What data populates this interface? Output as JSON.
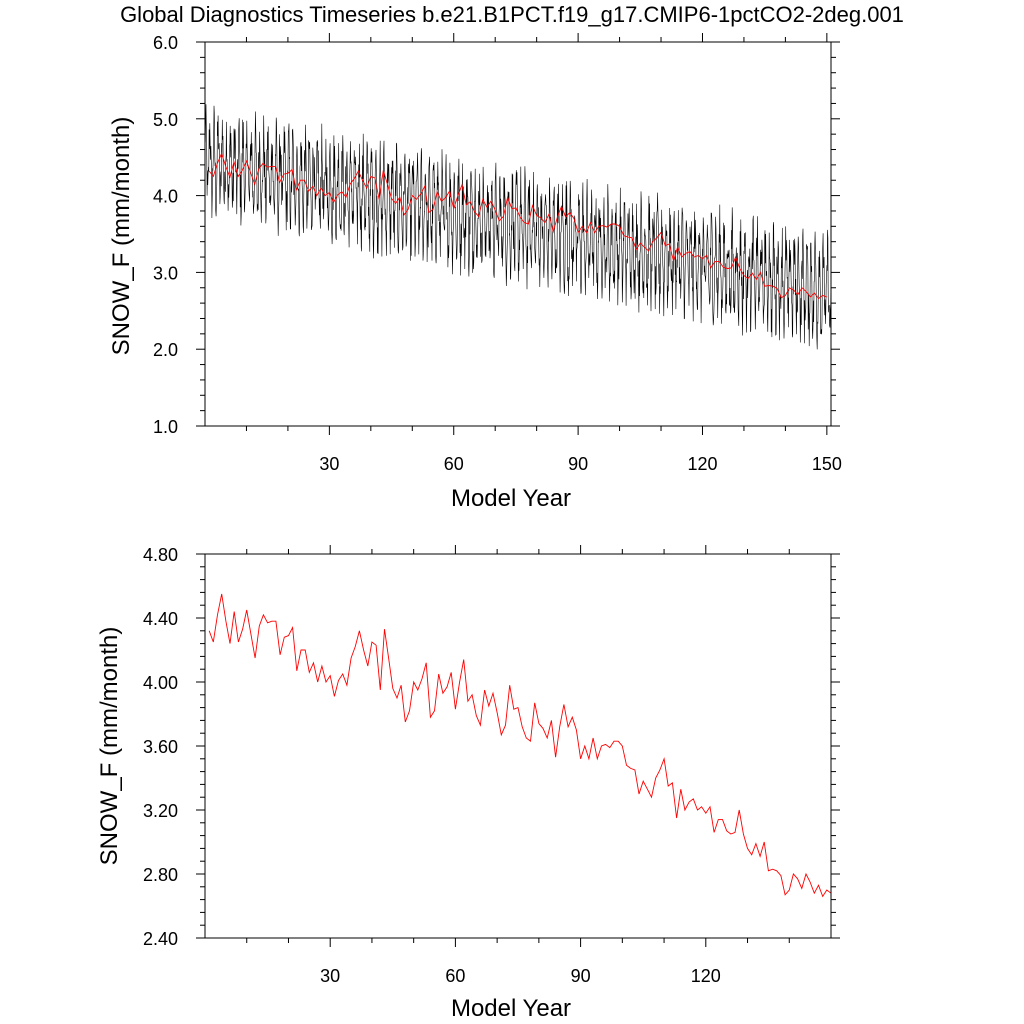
{
  "page": {
    "title": "Global Diagnostics Timeseries b.e21.B1PCT.f19_g17.CMIP6-1pctCO2-2deg.001"
  },
  "colors": {
    "monthly": "#000000",
    "annual": "#ff0000",
    "axis": "#000000"
  },
  "chart_data": [
    {
      "type": "line",
      "xlabel": "Model Year",
      "ylabel": "SNOW_F (mm/month)",
      "xlim": [
        0,
        151
      ],
      "ylim": [
        1.0,
        6.0
      ],
      "x_ticks": [
        30,
        60,
        90,
        120,
        150
      ],
      "y_ticks": [
        1.0,
        2.0,
        3.0,
        4.0,
        5.0,
        6.0
      ],
      "y_tick_labels": [
        "1.0",
        "2.0",
        "3.0",
        "4.0",
        "5.0",
        "6.0"
      ],
      "series": [
        {
          "id": "monthly",
          "style": "monthly_envelope",
          "color": "#000000",
          "trend_start": 4.45,
          "trend_end": 2.75,
          "amp_start": 0.45,
          "amp_end": 0.5
        },
        {
          "id": "annual",
          "style": "annual_mean",
          "color": "#ff0000"
        }
      ]
    },
    {
      "type": "line",
      "xlabel": "Model Year",
      "ylabel": "SNOW_F (mm/month)",
      "xlim": [
        0,
        150
      ],
      "ylim": [
        2.4,
        4.8
      ],
      "x_ticks": [
        30,
        60,
        90,
        120
      ],
      "y_ticks": [
        2.4,
        2.8,
        3.2,
        3.6,
        4.0,
        4.4,
        4.8
      ],
      "y_tick_labels": [
        "2.40",
        "2.80",
        "3.20",
        "3.60",
        "4.00",
        "4.40",
        "4.80"
      ],
      "series": [
        {
          "id": "annual",
          "color": "#ff0000",
          "x": [
            1,
            2,
            3,
            4,
            5,
            6,
            7,
            8,
            9,
            10,
            11,
            12,
            13,
            14,
            15,
            16,
            17,
            18,
            19,
            20,
            21,
            22,
            23,
            24,
            25,
            26,
            27,
            28,
            29,
            30,
            31,
            32,
            33,
            34,
            35,
            36,
            37,
            38,
            39,
            40,
            41,
            42,
            43,
            44,
            45,
            46,
            47,
            48,
            49,
            50,
            51,
            52,
            53,
            54,
            55,
            56,
            57,
            58,
            59,
            60,
            61,
            62,
            63,
            64,
            65,
            66,
            67,
            68,
            69,
            70,
            71,
            72,
            73,
            74,
            75,
            76,
            77,
            78,
            79,
            80,
            81,
            82,
            83,
            84,
            85,
            86,
            87,
            88,
            89,
            90,
            91,
            92,
            93,
            94,
            95,
            96,
            97,
            98,
            99,
            100,
            101,
            102,
            103,
            104,
            105,
            106,
            107,
            108,
            109,
            110,
            111,
            112,
            113,
            114,
            115,
            116,
            117,
            118,
            119,
            120,
            121,
            122,
            123,
            124,
            125,
            126,
            127,
            128,
            129,
            130,
            131,
            132,
            133,
            134,
            135,
            136,
            137,
            138,
            139,
            140,
            141,
            142,
            143,
            144,
            145,
            146,
            147,
            148,
            149,
            150
          ],
          "values": [
            4.32,
            4.25,
            4.42,
            4.55,
            4.38,
            4.24,
            4.44,
            4.25,
            4.33,
            4.45,
            4.3,
            4.15,
            4.35,
            4.42,
            4.37,
            4.38,
            4.38,
            4.17,
            4.28,
            4.29,
            4.34,
            4.07,
            4.2,
            4.2,
            4.06,
            4.12,
            4.0,
            4.1,
            4.0,
            4.04,
            3.91,
            4.01,
            4.05,
            3.98,
            4.15,
            4.22,
            4.32,
            4.2,
            4.1,
            4.25,
            4.23,
            3.95,
            4.33,
            4.15,
            3.96,
            3.9,
            3.98,
            3.75,
            3.82,
            4.0,
            3.95,
            4.02,
            4.12,
            3.78,
            3.82,
            4.05,
            3.93,
            3.97,
            4.06,
            3.83,
            4.0,
            4.14,
            3.88,
            3.92,
            3.79,
            3.73,
            3.95,
            3.85,
            3.93,
            3.81,
            3.67,
            3.73,
            3.98,
            3.83,
            3.84,
            3.72,
            3.65,
            3.63,
            3.87,
            3.74,
            3.71,
            3.65,
            3.76,
            3.53,
            3.72,
            3.86,
            3.72,
            3.78,
            3.7,
            3.52,
            3.6,
            3.52,
            3.65,
            3.52,
            3.6,
            3.61,
            3.59,
            3.63,
            3.63,
            3.6,
            3.48,
            3.46,
            3.45,
            3.3,
            3.38,
            3.33,
            3.28,
            3.4,
            3.45,
            3.52,
            3.35,
            3.37,
            3.15,
            3.33,
            3.2,
            3.25,
            3.27,
            3.2,
            3.22,
            3.18,
            3.22,
            3.06,
            3.14,
            3.14,
            3.07,
            3.05,
            3.06,
            3.2,
            3.05,
            2.96,
            2.92,
            2.99,
            2.91,
            3.0,
            2.82,
            2.83,
            2.82,
            2.79,
            2.67,
            2.7,
            2.8,
            2.77,
            2.71,
            2.8,
            2.75,
            2.68,
            2.73,
            2.66,
            2.7,
            2.68
          ]
        }
      ]
    }
  ]
}
